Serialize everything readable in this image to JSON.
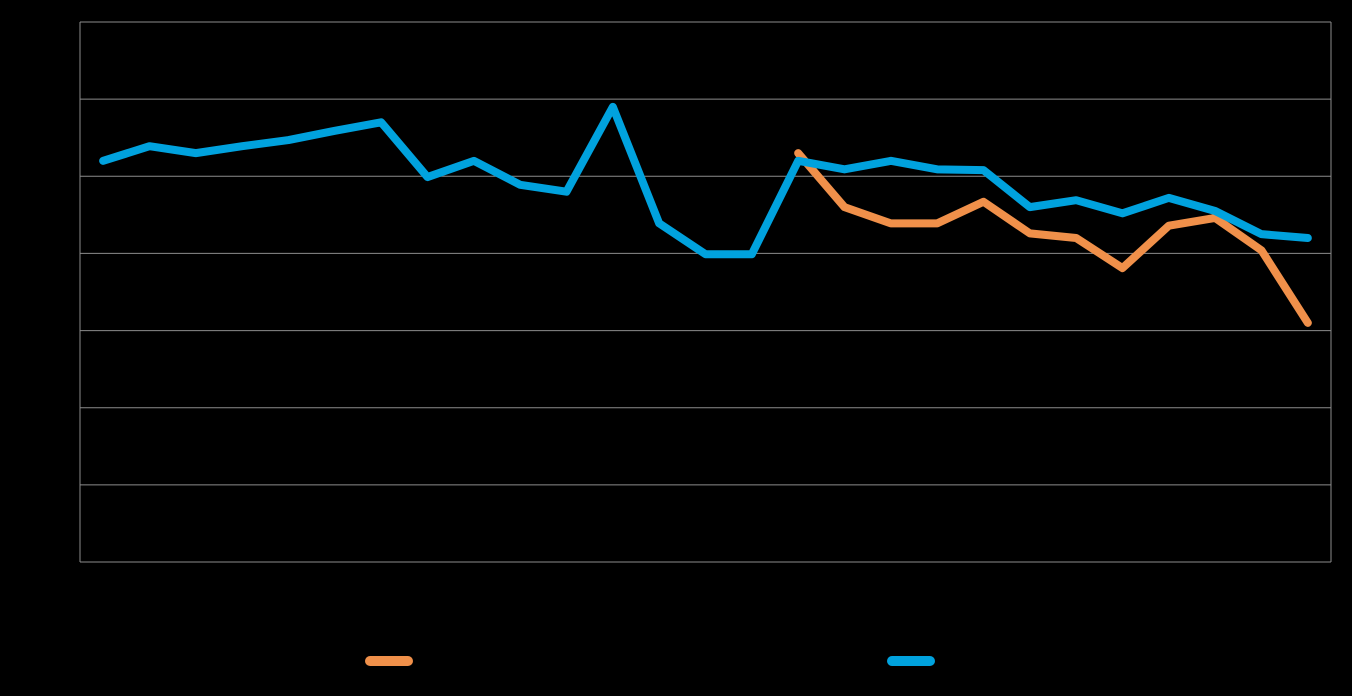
{
  "chart_data": {
    "type": "line",
    "categories": [
      null,
      null,
      null,
      null,
      null,
      null,
      null,
      null,
      null,
      null,
      null,
      null,
      null,
      null,
      null,
      null,
      null,
      null,
      null,
      null,
      null,
      null,
      null,
      null,
      null,
      null,
      null
    ],
    "series": [
      {
        "color": "#f0904a",
        "values": [
          null,
          null,
          null,
          null,
          null,
          null,
          null,
          null,
          null,
          null,
          null,
          null,
          null,
          null,
          null,
          53.0,
          46.0,
          43.9,
          43.9,
          46.7,
          42.6,
          42.0,
          38.1,
          43.6,
          44.6,
          40.4,
          31.0
        ]
      },
      {
        "color": "#00a2de",
        "values": [
          52.0,
          53.9,
          53.0,
          53.9,
          54.7,
          55.9,
          57.0,
          49.9,
          52.0,
          48.9,
          48.0,
          59.0,
          43.9,
          39.9,
          39.9,
          52.0,
          50.9,
          52.0,
          50.9,
          50.8,
          46.0,
          46.9,
          45.2,
          47.2,
          45.5,
          42.5,
          42.0
        ]
      }
    ],
    "ylim": [
      0,
      70
    ],
    "yticks": [
      0,
      10,
      20,
      30,
      40,
      50,
      60,
      70
    ],
    "grid": true
  }
}
